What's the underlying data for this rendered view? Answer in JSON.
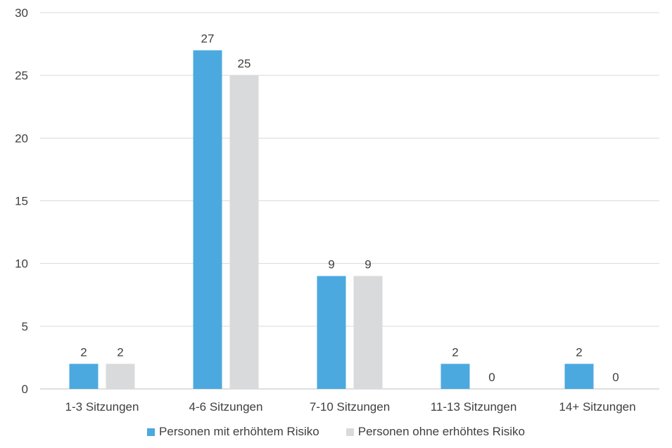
{
  "chart_data": {
    "type": "bar",
    "title": "",
    "xlabel": "",
    "ylabel": "",
    "ylim": [
      0,
      30
    ],
    "yticks": [
      0,
      5,
      10,
      15,
      20,
      25,
      30
    ],
    "grid": true,
    "legend_position": "bottom",
    "categories": [
      "1-3 Sitzungen",
      "4-6 Sitzungen",
      "7-10 Sitzungen",
      "11-13 Sitzungen",
      "14+ Sitzungen"
    ],
    "series": [
      {
        "name": "Personen mit erhöhtem Risiko",
        "color": "#4ba9df",
        "values": [
          2,
          27,
          9,
          2,
          2
        ]
      },
      {
        "name": "Personen ohne erhöhtes Risiko",
        "color": "#d9dadb",
        "values": [
          2,
          25,
          9,
          0,
          0
        ]
      }
    ]
  }
}
